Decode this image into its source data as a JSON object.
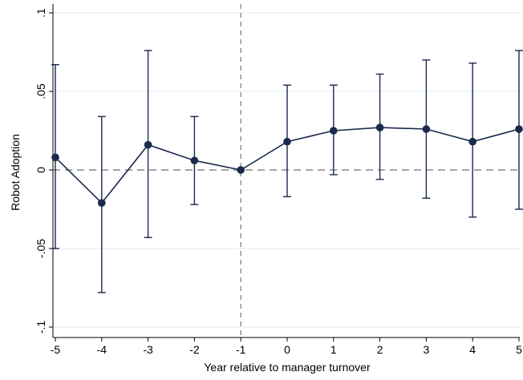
{
  "chart_data": {
    "type": "line",
    "xlabel": "Year relative to manager turnover",
    "ylabel": "Robot Adoption",
    "x_ticks": [
      "-5",
      "-4",
      "-3",
      "-2",
      "-1",
      "0",
      "1",
      "2",
      "3",
      "4",
      "5"
    ],
    "y_ticks": [
      {
        "value": -0.1,
        "label": "-.1"
      },
      {
        "value": -0.05,
        "label": "-.05"
      },
      {
        "value": 0,
        "label": "0"
      },
      {
        "value": 0.05,
        "label": ".05"
      },
      {
        "value": 0.1,
        "label": ".1"
      }
    ],
    "xlim": [
      -5,
      5
    ],
    "ylim": [
      -0.1,
      0.1
    ],
    "grid": "horizontal",
    "series": [
      {
        "x": [
          -5,
          -4,
          -3,
          -2,
          -1,
          0,
          1,
          2,
          3,
          4,
          5
        ],
        "y": [
          0.008,
          -0.021,
          0.016,
          0.006,
          0.0,
          0.018,
          0.025,
          0.027,
          0.026,
          0.018,
          0.026
        ],
        "ci_low": [
          -0.05,
          -0.078,
          -0.043,
          -0.022,
          0.0,
          -0.017,
          -0.003,
          -0.006,
          -0.018,
          -0.03,
          -0.025
        ],
        "ci_high": [
          0.067,
          0.034,
          0.076,
          0.034,
          0.0,
          0.054,
          0.054,
          0.061,
          0.07,
          0.068,
          0.076
        ]
      }
    ],
    "reference_lines": {
      "horizontal_y": 0,
      "vertical_x": -1
    },
    "colors": {
      "series": "#1a2a4d",
      "grid": "#eaf0f3",
      "reference": "#888888"
    }
  }
}
